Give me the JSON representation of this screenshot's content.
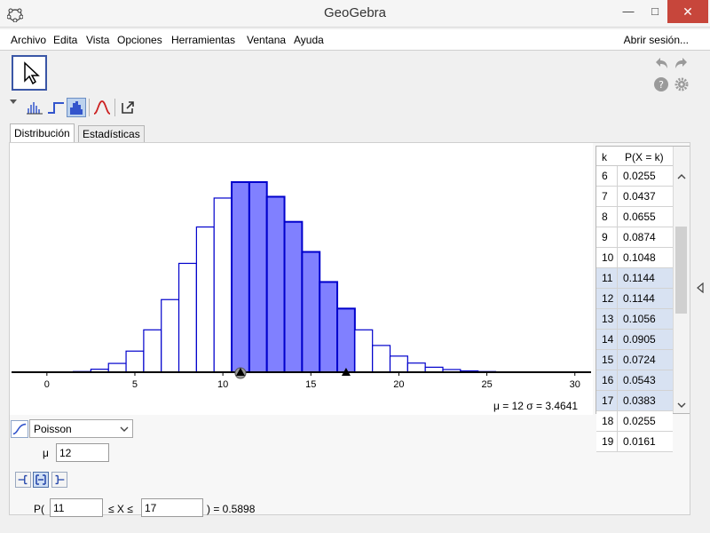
{
  "window": {
    "title": "GeoGebra",
    "close_glyph": "✕",
    "max_glyph": "□",
    "min_glyph": "—"
  },
  "menu": {
    "items": [
      "Archivo",
      "Edita",
      "Vista",
      "Opciones",
      "Herramientas",
      "Ventana",
      "Ayuda"
    ],
    "login": "Abrir sesión..."
  },
  "tabs": {
    "distribution": "Distribución",
    "statistics": "Estadísticas"
  },
  "distribution": {
    "name": "Poisson",
    "mu_label": "μ",
    "mu_value": "12"
  },
  "probability": {
    "p_open": "P(",
    "low": "11",
    "between": "≤ X ≤",
    "high": "17",
    "result": ") =  0.5898"
  },
  "stats_text": "μ = 12   σ = 3.4641",
  "table": {
    "col_k": "k",
    "col_p": "P(X = k)",
    "rows": [
      {
        "k": "6",
        "p": "0.0255",
        "sel": false
      },
      {
        "k": "7",
        "p": "0.0437",
        "sel": false
      },
      {
        "k": "8",
        "p": "0.0655",
        "sel": false
      },
      {
        "k": "9",
        "p": "0.0874",
        "sel": false
      },
      {
        "k": "10",
        "p": "0.1048",
        "sel": false
      },
      {
        "k": "11",
        "p": "0.1144",
        "sel": true
      },
      {
        "k": "12",
        "p": "0.1144",
        "sel": true
      },
      {
        "k": "13",
        "p": "0.1056",
        "sel": true
      },
      {
        "k": "14",
        "p": "0.0905",
        "sel": true
      },
      {
        "k": "15",
        "p": "0.0724",
        "sel": true
      },
      {
        "k": "16",
        "p": "0.0543",
        "sel": true
      },
      {
        "k": "17",
        "p": "0.0383",
        "sel": true
      },
      {
        "k": "18",
        "p": "0.0255",
        "sel": false
      },
      {
        "k": "19",
        "p": "0.0161",
        "sel": false
      }
    ]
  },
  "chart_data": {
    "type": "bar",
    "x_ticks": [
      "0",
      "5",
      "10",
      "15",
      "20",
      "25",
      "30"
    ],
    "xlim": [
      -1,
      32
    ],
    "ylim": [
      0,
      0.1144
    ],
    "highlight_range": [
      11,
      17
    ],
    "colors": {
      "outline": "#0000cc",
      "fill_selected": "#8080ff",
      "fill_normal": "#ffffff"
    },
    "x": [
      0,
      1,
      2,
      3,
      4,
      5,
      6,
      7,
      8,
      9,
      10,
      11,
      12,
      13,
      14,
      15,
      16,
      17,
      18,
      19,
      20,
      21,
      22,
      23,
      24,
      25,
      26,
      27,
      28,
      29,
      30,
      31
    ],
    "values": [
      0.0,
      0.0001,
      0.0004,
      0.0018,
      0.0053,
      0.0127,
      0.0255,
      0.0437,
      0.0655,
      0.0874,
      0.1048,
      0.1144,
      0.1144,
      0.1056,
      0.0905,
      0.0724,
      0.0543,
      0.0383,
      0.0255,
      0.0161,
      0.0097,
      0.0055,
      0.003,
      0.0016,
      0.0008,
      0.0004,
      0.0002,
      0.0001,
      0.0,
      0.0,
      0.0,
      0.0
    ]
  }
}
